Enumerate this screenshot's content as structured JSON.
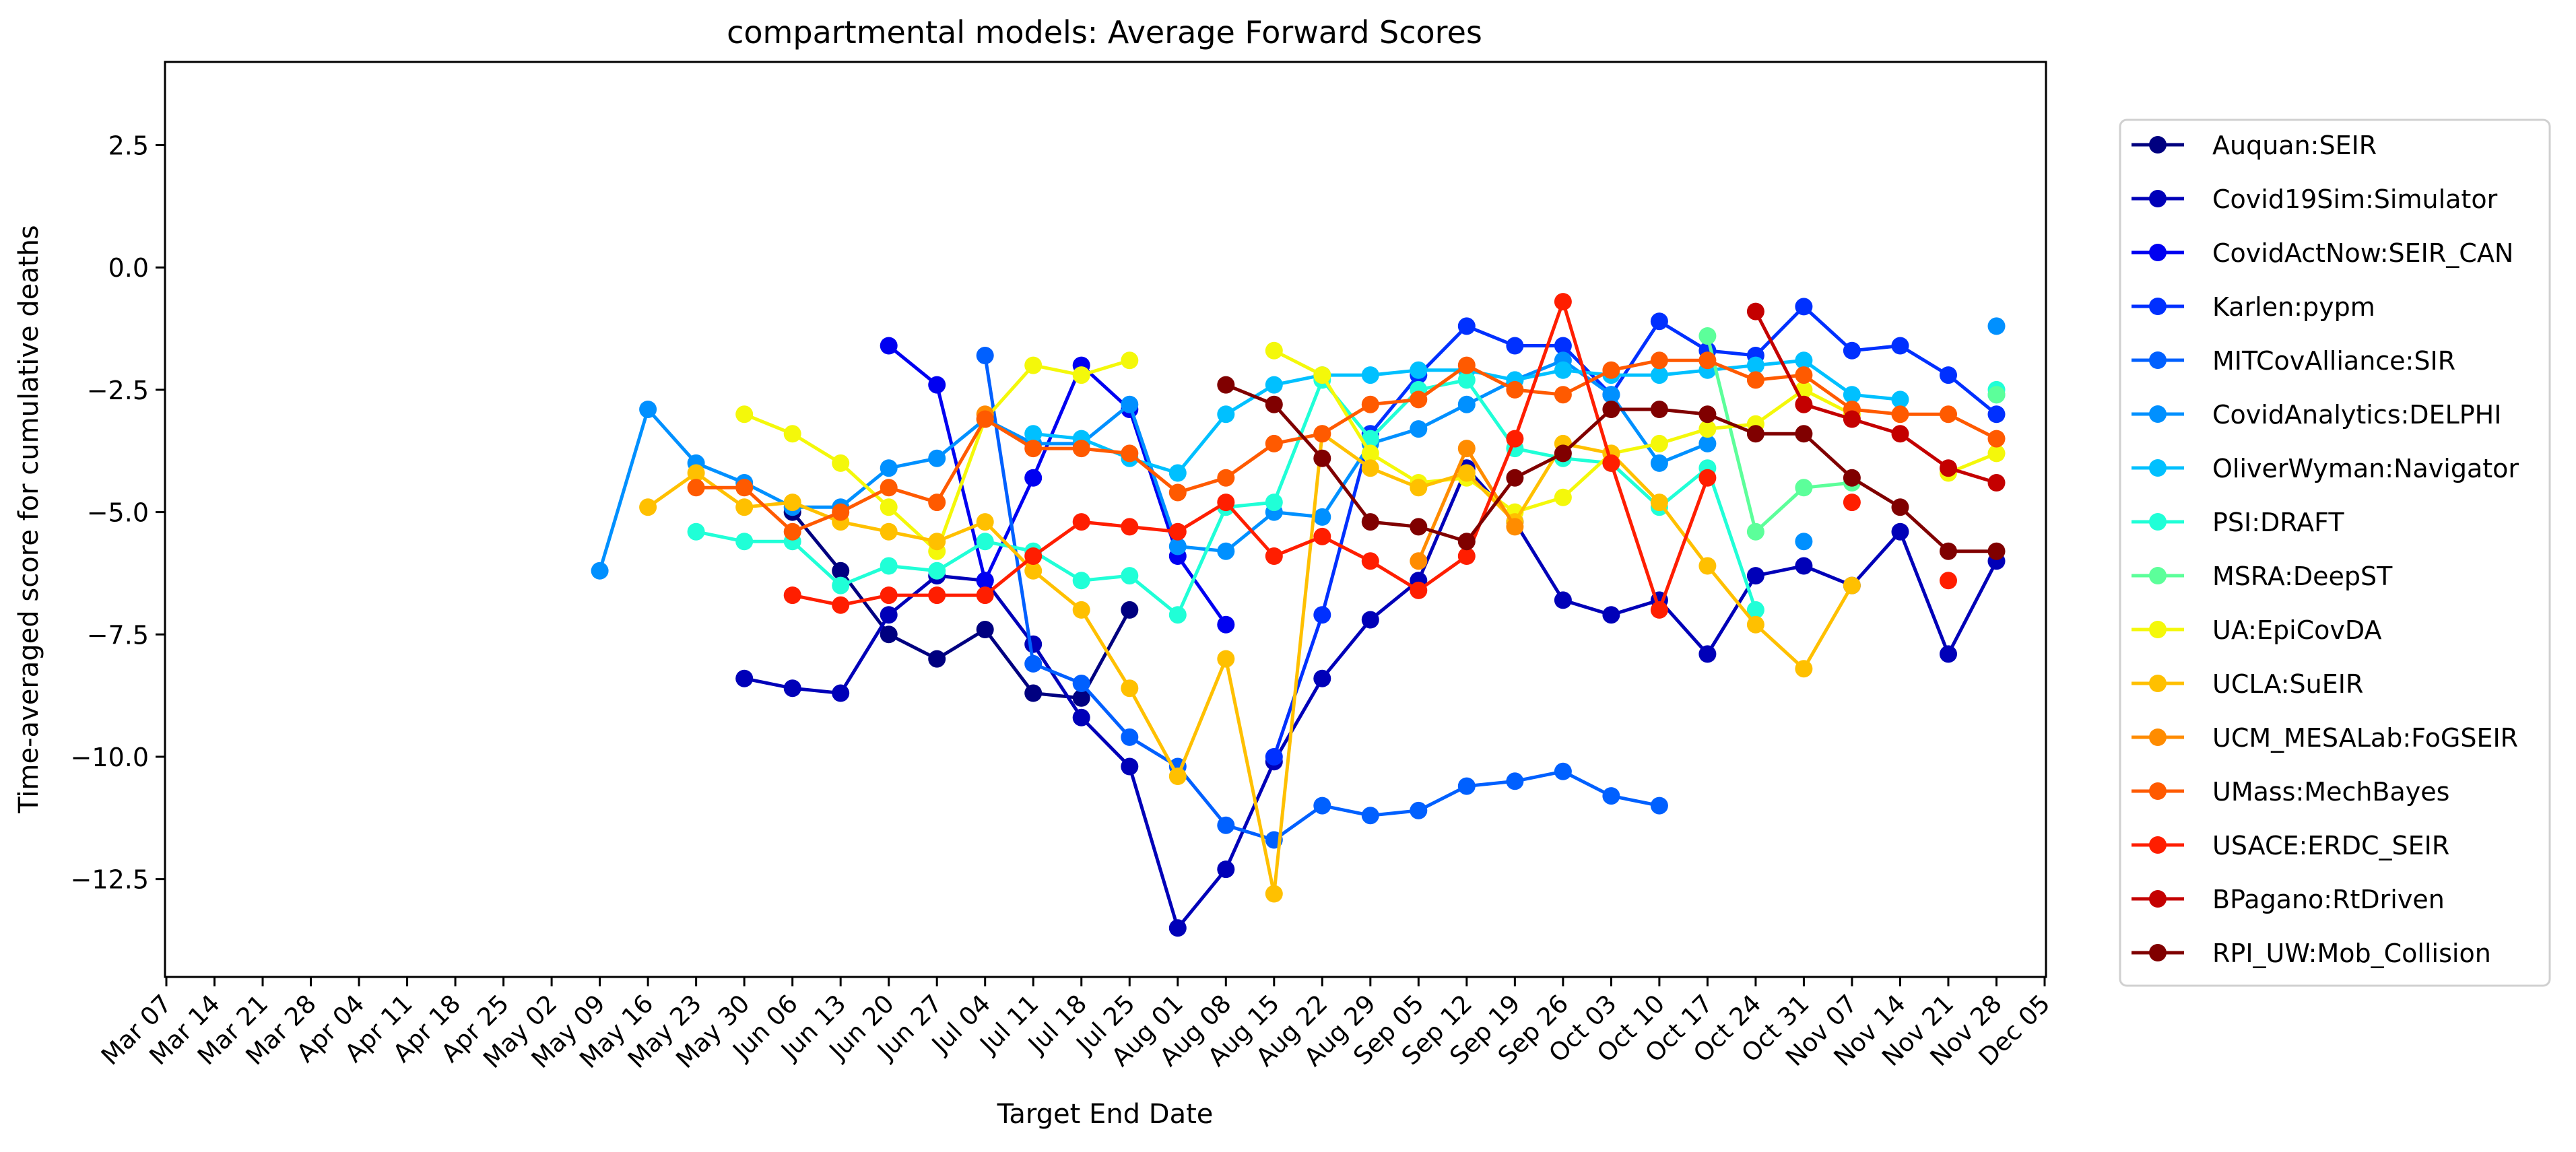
{
  "chart_data": {
    "type": "line",
    "title": "compartmental models: Average Forward Scores",
    "xlabel": "Target End Date",
    "ylabel": "Time-averaged score for cumulative deaths",
    "ylim": [
      -14.5,
      4.2
    ],
    "yticks": [
      2.5,
      0.0,
      -2.5,
      -5.0,
      -7.5,
      -10.0,
      -12.5
    ],
    "ytick_labels": [
      "2.5",
      "0.0",
      "−2.5",
      "−5.0",
      "−7.5",
      "−10.0",
      "−12.5"
    ],
    "categories": [
      "Mar 07",
      "Mar 14",
      "Mar 21",
      "Mar 28",
      "Apr 04",
      "Apr 11",
      "Apr 18",
      "Apr 25",
      "May 02",
      "May 09",
      "May 16",
      "May 23",
      "May 30",
      "Jun 06",
      "Jun 13",
      "Jun 20",
      "Jun 27",
      "Jul 04",
      "Jul 11",
      "Jul 18",
      "Jul 25",
      "Aug 01",
      "Aug 08",
      "Aug 15",
      "Aug 22",
      "Aug 29",
      "Sep 05",
      "Sep 12",
      "Sep 19",
      "Sep 26",
      "Oct 03",
      "Oct 10",
      "Oct 17",
      "Oct 24",
      "Oct 31",
      "Nov 07",
      "Nov 14",
      "Nov 21",
      "Nov 28",
      "Dec 05"
    ],
    "grid": false,
    "legend_position": "right",
    "series": [
      {
        "name": "Auquan:SEIR",
        "color": "#000080",
        "values": [
          null,
          null,
          null,
          null,
          null,
          null,
          null,
          null,
          null,
          null,
          null,
          null,
          null,
          -5.0,
          -6.2,
          -7.5,
          -8.0,
          -7.4,
          -8.7,
          -8.8,
          -7.0,
          null,
          null,
          null,
          null,
          null,
          null,
          null,
          null,
          null,
          null,
          null,
          null,
          null,
          null,
          null,
          null,
          null,
          null,
          null
        ]
      },
      {
        "name": "Covid19Sim:Simulator",
        "color": "#0000b8",
        "values": [
          null,
          null,
          null,
          null,
          null,
          null,
          null,
          null,
          null,
          null,
          null,
          null,
          -8.4,
          -8.6,
          -8.7,
          -7.1,
          -6.3,
          -6.4,
          -7.7,
          -9.2,
          -10.2,
          -13.5,
          -12.3,
          -10.1,
          -8.4,
          -7.2,
          -6.4,
          -4.1,
          -5.2,
          -6.8,
          -7.1,
          -6.8,
          -7.9,
          -6.3,
          -6.1,
          -6.5,
          -5.4,
          -7.9,
          -6.0,
          null
        ]
      },
      {
        "name": "CovidActNow:SEIR_CAN",
        "color": "#0000f1",
        "values": [
          null,
          null,
          null,
          null,
          null,
          null,
          null,
          null,
          null,
          null,
          null,
          null,
          null,
          null,
          null,
          -1.6,
          -2.4,
          -6.4,
          -4.3,
          -2.0,
          -2.9,
          -5.9,
          -7.3,
          null,
          null,
          null,
          null,
          null,
          null,
          null,
          null,
          null,
          null,
          null,
          null,
          null,
          null,
          null,
          null,
          null
        ]
      },
      {
        "name": "Karlen:pypm",
        "color": "#0030ff",
        "values": [
          null,
          null,
          null,
          null,
          null,
          null,
          null,
          null,
          null,
          null,
          null,
          null,
          null,
          null,
          null,
          null,
          null,
          null,
          null,
          null,
          null,
          null,
          null,
          -10.0,
          -7.1,
          -3.4,
          -2.2,
          -1.2,
          -1.6,
          -1.6,
          -2.6,
          -1.1,
          -1.7,
          -1.8,
          -0.8,
          -1.7,
          -1.6,
          -2.2,
          -3.0,
          null
        ]
      },
      {
        "name": "MITCovAlliance:SIR",
        "color": "#0060ff",
        "values": [
          null,
          null,
          null,
          null,
          null,
          null,
          null,
          null,
          null,
          null,
          null,
          null,
          null,
          null,
          null,
          null,
          null,
          -1.8,
          -8.1,
          -8.5,
          -9.6,
          -10.2,
          -11.4,
          -11.7,
          -11.0,
          -11.2,
          -11.1,
          -10.6,
          -10.5,
          -10.3,
          -10.8,
          -11.0,
          null,
          null,
          null,
          null,
          null,
          null,
          null,
          null
        ]
      },
      {
        "name": "CovidAnalytics:DELPHI",
        "color": "#0090ff",
        "values": [
          null,
          null,
          null,
          null,
          null,
          null,
          null,
          null,
          null,
          -6.2,
          -2.9,
          -4.0,
          -4.4,
          -4.9,
          -4.9,
          -4.1,
          -3.9,
          -3.1,
          -3.6,
          -3.6,
          -2.8,
          -5.7,
          -5.8,
          -5.0,
          -5.1,
          -3.6,
          -3.3,
          -2.8,
          -2.3,
          -1.9,
          -2.6,
          -4.0,
          -3.6,
          null,
          -5.6,
          null,
          null,
          null,
          -1.2,
          null
        ]
      },
      {
        "name": "OliverWyman:Navigator",
        "color": "#00c0ff",
        "values": [
          null,
          null,
          null,
          null,
          null,
          null,
          null,
          null,
          null,
          null,
          null,
          null,
          null,
          null,
          null,
          null,
          null,
          null,
          -3.4,
          -3.5,
          -3.9,
          -4.2,
          -3.0,
          -2.4,
          -2.2,
          -2.2,
          -2.1,
          -2.1,
          -2.3,
          -2.1,
          -2.2,
          -2.2,
          -2.1,
          -2.0,
          -1.9,
          -2.6,
          -2.7,
          null,
          -2.6,
          null
        ]
      },
      {
        "name": "PSI:DRAFT",
        "color": "#20ffd7",
        "values": [
          null,
          null,
          null,
          null,
          null,
          null,
          null,
          null,
          null,
          null,
          null,
          -5.4,
          -5.6,
          -5.6,
          -6.5,
          -6.1,
          -6.2,
          -5.6,
          -5.8,
          -6.4,
          -6.3,
          -7.1,
          -4.9,
          -4.8,
          -2.3,
          -3.5,
          -2.5,
          -2.3,
          -3.7,
          -3.9,
          -4.0,
          -4.9,
          -4.1,
          -7.0,
          null,
          null,
          null,
          null,
          -2.5,
          null
        ]
      },
      {
        "name": "MSRA:DeepST",
        "color": "#5cff9a",
        "values": [
          null,
          null,
          null,
          null,
          null,
          null,
          null,
          null,
          null,
          null,
          null,
          null,
          null,
          null,
          null,
          null,
          null,
          null,
          null,
          null,
          null,
          null,
          null,
          null,
          null,
          null,
          null,
          null,
          null,
          null,
          null,
          null,
          -1.4,
          -5.4,
          -4.5,
          -4.4,
          null,
          null,
          -2.6,
          null
        ]
      },
      {
        "name": "UA:EpiCovDA",
        "color": "#f4f80a",
        "values": [
          null,
          null,
          null,
          null,
          null,
          null,
          null,
          null,
          null,
          null,
          null,
          null,
          -3.0,
          -3.4,
          -4.0,
          -4.9,
          -5.8,
          -3.1,
          -2.0,
          -2.2,
          -1.9,
          null,
          null,
          -1.7,
          -2.2,
          -3.8,
          -4.4,
          -4.3,
          -5.0,
          -4.7,
          -3.8,
          -3.6,
          -3.3,
          -3.2,
          -2.5,
          -3.0,
          null,
          -4.2,
          -3.8,
          null
        ]
      },
      {
        "name": "UCLA:SuEIR",
        "color": "#ffc000",
        "values": [
          null,
          null,
          null,
          null,
          null,
          null,
          null,
          null,
          null,
          null,
          -4.9,
          -4.2,
          -4.9,
          -4.8,
          -5.2,
          -5.4,
          -5.6,
          -5.2,
          -6.2,
          -7.0,
          -8.6,
          -10.4,
          -8.0,
          -12.8,
          -3.4,
          -4.1,
          -4.5,
          -4.2,
          -5.2,
          -3.6,
          -3.8,
          -4.8,
          -6.1,
          -7.3,
          -8.2,
          -6.5,
          null,
          null,
          null,
          null
        ]
      },
      {
        "name": "UCM_MESALab:FoGSEIR",
        "color": "#ff8c00",
        "values": [
          null,
          null,
          null,
          null,
          null,
          null,
          null,
          null,
          null,
          null,
          null,
          null,
          null,
          null,
          null,
          null,
          null,
          -3.0,
          null,
          null,
          null,
          null,
          null,
          null,
          null,
          null,
          -6.0,
          -3.7,
          -5.3,
          null,
          null,
          null,
          null,
          null,
          null,
          null,
          null,
          null,
          null,
          null
        ]
      },
      {
        "name": "UMass:MechBayes",
        "color": "#ff5a00",
        "values": [
          null,
          null,
          null,
          null,
          null,
          null,
          null,
          null,
          null,
          null,
          null,
          -4.5,
          -4.5,
          -5.4,
          -5.0,
          -4.5,
          -4.8,
          -3.1,
          -3.7,
          -3.7,
          -3.8,
          -4.6,
          -4.3,
          -3.6,
          -3.4,
          -2.8,
          -2.7,
          -2.0,
          -2.5,
          -2.6,
          -2.1,
          -1.9,
          -1.9,
          -2.3,
          -2.2,
          -2.9,
          -3.0,
          -3.0,
          -3.5,
          null
        ]
      },
      {
        "name": "USACE:ERDC_SEIR",
        "color": "#ff1e00",
        "values": [
          null,
          null,
          null,
          null,
          null,
          null,
          null,
          null,
          null,
          null,
          null,
          null,
          null,
          -6.7,
          -6.9,
          -6.7,
          -6.7,
          -6.7,
          -5.9,
          -5.2,
          -5.3,
          -5.4,
          -4.8,
          -5.9,
          -5.5,
          -6.0,
          -6.6,
          -5.9,
          -3.5,
          -0.7,
          -4.0,
          -7.0,
          -4.3,
          null,
          null,
          -4.8,
          null,
          -6.4,
          null,
          null
        ]
      },
      {
        "name": "BPagano:RtDriven",
        "color": "#c40000",
        "values": [
          null,
          null,
          null,
          null,
          null,
          null,
          null,
          null,
          null,
          null,
          null,
          null,
          null,
          null,
          null,
          null,
          null,
          null,
          null,
          null,
          null,
          null,
          null,
          null,
          null,
          null,
          null,
          null,
          null,
          null,
          null,
          null,
          null,
          -0.9,
          -2.8,
          -3.1,
          -3.4,
          -4.1,
          -4.4,
          null
        ]
      },
      {
        "name": "RPI_UW:Mob_Collision",
        "color": "#800000",
        "values": [
          null,
          null,
          null,
          null,
          null,
          null,
          null,
          null,
          null,
          null,
          null,
          null,
          null,
          null,
          null,
          null,
          null,
          null,
          null,
          null,
          null,
          null,
          -2.4,
          -2.8,
          -3.9,
          -5.2,
          -5.3,
          -5.6,
          -4.3,
          -3.8,
          -2.9,
          -2.9,
          -3.0,
          -3.4,
          -3.4,
          -4.3,
          -4.9,
          -5.8,
          -5.8,
          null
        ]
      }
    ]
  }
}
